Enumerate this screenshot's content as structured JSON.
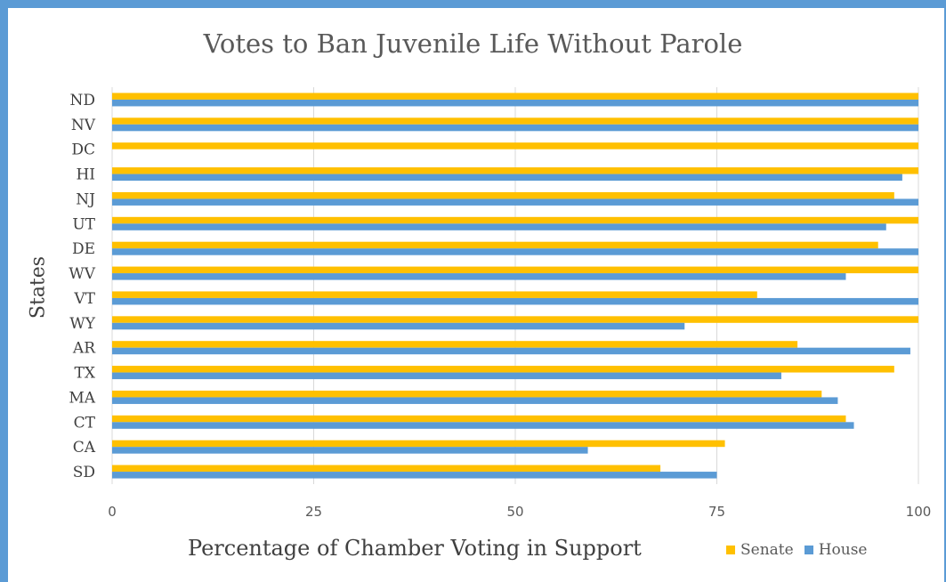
{
  "chart_data": {
    "type": "bar",
    "orientation": "horizontal",
    "title": "Votes to Ban Juvenile Life Without Parole",
    "xlabel": "Percentage of Chamber Voting in Support",
    "ylabel": "States",
    "xlim": [
      0,
      100
    ],
    "xticks": [
      "0",
      "25",
      "50",
      "75",
      "100"
    ],
    "grid": true,
    "legend_position": "bottom-right",
    "categories": [
      "ND",
      "NV",
      "DC",
      "HI",
      "NJ",
      "UT",
      "DE",
      "WV",
      "VT",
      "WY",
      "AR",
      "TX",
      "MA",
      "CT",
      "CA",
      "SD"
    ],
    "series": [
      {
        "name": "Senate",
        "color": "#ffc000",
        "values": [
          100,
          100,
          100,
          100,
          97,
          100,
          95,
          100,
          80,
          100,
          85,
          97,
          88,
          91,
          76,
          68
        ]
      },
      {
        "name": "House",
        "color": "#5b9bd5",
        "values": [
          100,
          100,
          null,
          98,
          100,
          96,
          100,
          91,
          100,
          71,
          99,
          83,
          90,
          92,
          59,
          75
        ]
      }
    ]
  }
}
